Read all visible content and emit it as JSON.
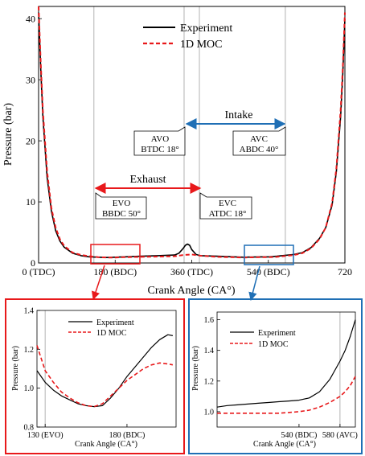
{
  "main": {
    "x_ticks": [
      {
        "value": 0,
        "label": "0 (TDC)"
      },
      {
        "value": 180,
        "label": "180 (BDC)"
      },
      {
        "value": 360,
        "label": "360 (TDC)"
      },
      {
        "value": 540,
        "label": "540 (BDC)"
      },
      {
        "value": 720,
        "label": "720"
      }
    ],
    "y_ticks": [
      0,
      10,
      20,
      30,
      40
    ],
    "xlabel": "Crank Angle (CA°)",
    "ylabel": "Pressure (bar)",
    "legend": [
      "Experiment",
      "1D MOC"
    ],
    "markers": [
      130,
      342,
      378,
      580
    ],
    "intake_label": "Intake",
    "exhaust_label": "Exhaust",
    "valve_boxes": [
      {
        "line1": "AVO",
        "line2": "BTDC 18°"
      },
      {
        "line1": "AVC",
        "line2": "ABDC 40°"
      },
      {
        "line1": "EVO",
        "line2": "BBDC 50°"
      },
      {
        "line1": "EVC",
        "line2": "ATDC 18°"
      }
    ]
  },
  "inset_left": {
    "x_ticks": [
      {
        "value": 130,
        "label": "130 (EVO)"
      },
      {
        "value": 180,
        "label": "180 (BDC)"
      }
    ],
    "y_ticks": [
      "0.8",
      "1.0",
      "1.2",
      "1.4"
    ],
    "xlabel": "Crank Angle (CA°)",
    "ylabel": "Pressure (bar)",
    "legend": [
      "Experiment",
      "1D MOC"
    ]
  },
  "inset_right": {
    "x_ticks": [
      {
        "value": 540,
        "label": "540 (BDC)"
      },
      {
        "value": 580,
        "label": "580 (AVC)"
      }
    ],
    "y_ticks": [
      "1.0",
      "1.2",
      "1.4",
      "1.6"
    ],
    "xlabel": "Crank Angle (CA°)",
    "ylabel": "Pressure (bar)",
    "legend": [
      "Experiment",
      "1D MOC"
    ]
  },
  "colors": {
    "experiment": "#000000",
    "moc": "#e8191b",
    "exhaust": "#e8191b",
    "intake": "#1f6fb5",
    "marker": "#b3b3b3"
  },
  "chart_data": [
    {
      "type": "line",
      "xlabel": "Crank Angle (CA°)",
      "ylabel": "Pressure (bar)",
      "xlim": [
        0,
        720
      ],
      "ylim": [
        0,
        42
      ],
      "series": [
        {
          "name": "Experiment",
          "x": [
            0,
            5,
            10,
            20,
            30,
            40,
            50,
            60,
            80,
            100,
            120,
            140,
            160,
            180,
            200,
            240,
            280,
            320,
            330,
            340,
            345,
            350,
            355,
            360,
            370,
            380,
            420,
            480,
            520,
            540,
            560,
            600,
            620,
            640,
            660,
            675,
            690,
            700,
            710,
            715,
            720
          ],
          "y": [
            41,
            32,
            24,
            14,
            8.5,
            5.3,
            3.6,
            2.6,
            1.6,
            1.2,
            1.0,
            0.95,
            0.9,
            0.95,
            1.0,
            1.1,
            1.2,
            1.3,
            1.6,
            2.4,
            2.9,
            3.1,
            2.9,
            2.2,
            1.4,
            1.2,
            1.1,
            0.95,
            1.0,
            1.0,
            1.1,
            1.4,
            1.7,
            2.5,
            4.0,
            5.8,
            9.5,
            15,
            24,
            31,
            40
          ]
        },
        {
          "name": "1D MOC",
          "x": [
            0,
            5,
            10,
            20,
            30,
            40,
            50,
            60,
            80,
            100,
            120,
            140,
            160,
            180,
            200,
            240,
            280,
            320,
            340,
            360,
            380,
            420,
            480,
            520,
            540,
            560,
            600,
            620,
            640,
            660,
            675,
            690,
            700,
            710,
            715,
            720
          ],
          "y": [
            42,
            33,
            25,
            15,
            9.0,
            5.8,
            3.9,
            2.8,
            1.7,
            1.3,
            1.1,
            0.95,
            0.9,
            0.9,
            0.95,
            1.0,
            1.05,
            1.1,
            1.3,
            1.4,
            1.2,
            1.0,
            0.9,
            0.95,
            0.95,
            1.0,
            1.3,
            1.6,
            2.4,
            3.9,
            5.8,
            9.8,
            15.5,
            25,
            32,
            41
          ]
        }
      ]
    },
    {
      "type": "line",
      "xlabel": "Crank Angle (CA°)",
      "ylabel": "Pressure (bar)",
      "xlim": [
        125,
        210
      ],
      "ylim": [
        0.8,
        1.4
      ],
      "series": [
        {
          "name": "Experiment",
          "x": [
            125,
            130,
            135,
            140,
            145,
            150,
            155,
            160,
            165,
            170,
            175,
            180,
            185,
            190,
            195,
            200,
            205,
            208
          ],
          "y": [
            1.09,
            1.03,
            0.99,
            0.96,
            0.94,
            0.92,
            0.91,
            0.905,
            0.91,
            0.95,
            1.0,
            1.06,
            1.11,
            1.16,
            1.21,
            1.25,
            1.275,
            1.27
          ]
        },
        {
          "name": "1D MOC",
          "x": [
            125,
            130,
            135,
            140,
            145,
            150,
            155,
            160,
            165,
            170,
            175,
            180,
            185,
            190,
            195,
            200,
            205,
            208
          ],
          "y": [
            1.22,
            1.09,
            1.03,
            0.98,
            0.95,
            0.925,
            0.91,
            0.905,
            0.92,
            0.96,
            1.0,
            1.04,
            1.07,
            1.1,
            1.12,
            1.13,
            1.125,
            1.12
          ]
        }
      ]
    },
    {
      "type": "line",
      "xlabel": "Crank Angle (CA°)",
      "ylabel": "Pressure (bar)",
      "xlim": [
        460,
        595
      ],
      "ylim": [
        0.9,
        1.65
      ],
      "series": [
        {
          "name": "Experiment",
          "x": [
            460,
            470,
            480,
            490,
            500,
            510,
            520,
            530,
            540,
            550,
            560,
            570,
            575,
            580,
            585,
            590,
            595
          ],
          "y": [
            1.03,
            1.04,
            1.045,
            1.05,
            1.055,
            1.06,
            1.065,
            1.07,
            1.075,
            1.09,
            1.13,
            1.21,
            1.27,
            1.33,
            1.4,
            1.49,
            1.6
          ]
        },
        {
          "name": "1D MOC",
          "x": [
            460,
            470,
            480,
            490,
            500,
            510,
            520,
            530,
            540,
            550,
            560,
            570,
            575,
            580,
            585,
            590,
            595
          ],
          "y": [
            0.99,
            0.99,
            0.99,
            0.99,
            0.99,
            0.99,
            0.99,
            0.995,
            1.0,
            1.01,
            1.03,
            1.06,
            1.08,
            1.1,
            1.13,
            1.17,
            1.23
          ]
        }
      ]
    }
  ]
}
